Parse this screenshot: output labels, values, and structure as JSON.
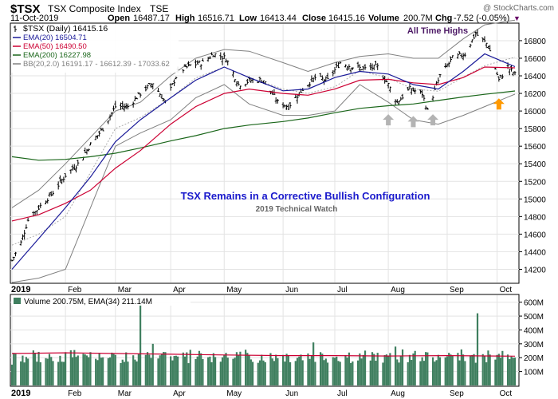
{
  "header": {
    "symbol": "$TSX",
    "name": "TSX Composite Index",
    "exchange": "TSE",
    "date": "11-Oct-2019",
    "open_label": "Open",
    "open": "16487.17",
    "high_label": "High",
    "high": "16516.71",
    "low_label": "Low",
    "low": "16413.44",
    "close_label": "Close",
    "close": "16415.16",
    "volume_label": "Volume",
    "volume": "200.7M",
    "chg_label": "Chg",
    "chg": "-7.52 (-0.05%)",
    "chg_marker": "▼",
    "watermark": "@ StockCharts.com"
  },
  "legend": [
    {
      "text": "$TSX (Daily) 16415.16",
      "color": "#000000",
      "swatch": "bar"
    },
    {
      "text": "EMA(20) 16504.71",
      "color": "#1a1a99",
      "swatch": "line"
    },
    {
      "text": "EMA(50) 16490.50",
      "color": "#cc0033",
      "swatch": "line"
    },
    {
      "text": "EMA(200) 16227.98",
      "color": "#1a661a",
      "swatch": "line"
    },
    {
      "text": "BB(20,2.0) 16191.17 - 16612.39 - 17033.62",
      "color": "#808080",
      "swatch": "line"
    }
  ],
  "annotations": {
    "all_time_highs": "All Time Highs",
    "title": "TSX Remains in a Corrective Bullish Configuration",
    "subtitle": "2019 Technical Watch"
  },
  "volume_legend": "Volume 200.75M, EMA(34) 211.14M",
  "x_labels": [
    "2019",
    "Feb",
    "Mar",
    "Apr",
    "May",
    "Jun",
    "Jul",
    "Aug",
    "Sep",
    "Oct"
  ],
  "colors": {
    "price_bars": "#000000",
    "ema20": "#1a1a99",
    "ema50": "#cc0033",
    "ema200": "#1a661a",
    "bollinger": "#808080",
    "volume_bars": "#3f7f5f",
    "volume_ema": "#cc0033",
    "title": "#1a1acc",
    "all_time_highs": "#4d1a66",
    "grey_arrow": "#b3b3b3",
    "orange_arrow": "#ff9900"
  },
  "chart_data": [
    {
      "type": "line",
      "panel": "price",
      "title": "TSX Remains in a Corrective Bullish Configuration",
      "subtitle": "2019 Technical Watch",
      "x_range": [
        "2019-01-02",
        "2019-10-11"
      ],
      "ylim": [
        14050,
        16990
      ],
      "y_ticks": [
        14200,
        14400,
        14600,
        14800,
        15000,
        15200,
        15400,
        15600,
        15800,
        16000,
        16200,
        16400,
        16600,
        16800
      ],
      "grid": true,
      "legend_placement": "top-left",
      "axis_side": "right",
      "series": [
        {
          "name": "$TSX (Daily)",
          "kind": "ohlc_close",
          "points": [
            [
              "2019-01-02",
              14300
            ],
            [
              "2019-01-07",
              14500
            ],
            [
              "2019-01-11",
              14760
            ],
            [
              "2019-01-17",
              14900
            ],
            [
              "2019-01-24",
              15050
            ],
            [
              "2019-02-01",
              15270
            ],
            [
              "2019-02-08",
              15400
            ],
            [
              "2019-02-15",
              15620
            ],
            [
              "2019-02-22",
              15800
            ],
            [
              "2019-03-01",
              16050
            ],
            [
              "2019-03-08",
              16050
            ],
            [
              "2019-03-15",
              16200
            ],
            [
              "2019-03-22",
              16320
            ],
            [
              "2019-03-29",
              16100
            ],
            [
              "2019-04-05",
              16440
            ],
            [
              "2019-04-12",
              16520
            ],
            [
              "2019-04-19",
              16550
            ],
            [
              "2019-04-25",
              16650
            ],
            [
              "2019-05-02",
              16600
            ],
            [
              "2019-05-09",
              16300
            ],
            [
              "2019-05-16",
              16350
            ],
            [
              "2019-05-23",
              16350
            ],
            [
              "2019-05-31",
              16100
            ],
            [
              "2019-06-06",
              16050
            ],
            [
              "2019-06-14",
              16250
            ],
            [
              "2019-06-21",
              16380
            ],
            [
              "2019-06-28",
              16350
            ],
            [
              "2019-07-05",
              16550
            ],
            [
              "2019-07-12",
              16500
            ],
            [
              "2019-07-19",
              16480
            ],
            [
              "2019-07-26",
              16500
            ],
            [
              "2019-08-01",
              16300
            ],
            [
              "2019-08-06",
              16100
            ],
            [
              "2019-08-13",
              16250
            ],
            [
              "2019-08-20",
              16200
            ],
            [
              "2019-08-23",
              16000
            ],
            [
              "2019-08-30",
              16400
            ],
            [
              "2019-09-06",
              16600
            ],
            [
              "2019-09-13",
              16650
            ],
            [
              "2019-09-19",
              16880
            ],
            [
              "2019-09-26",
              16750
            ],
            [
              "2019-10-02",
              16350
            ],
            [
              "2019-10-07",
              16500
            ],
            [
              "2019-10-11",
              16415.16
            ]
          ]
        },
        {
          "name": "EMA(20)",
          "points": [
            [
              "2019-01-02",
              14200
            ],
            [
              "2019-01-17",
              14550
            ],
            [
              "2019-02-01",
              14900
            ],
            [
              "2019-02-15",
              15250
            ],
            [
              "2019-03-01",
              15650
            ],
            [
              "2019-03-15",
              15900
            ],
            [
              "2019-04-01",
              16150
            ],
            [
              "2019-04-15",
              16350
            ],
            [
              "2019-05-01",
              16500
            ],
            [
              "2019-05-15",
              16380
            ],
            [
              "2019-06-03",
              16230
            ],
            [
              "2019-06-17",
              16250
            ],
            [
              "2019-07-02",
              16380
            ],
            [
              "2019-07-16",
              16450
            ],
            [
              "2019-08-01",
              16420
            ],
            [
              "2019-08-15",
              16300
            ],
            [
              "2019-08-29",
              16250
            ],
            [
              "2019-09-12",
              16450
            ],
            [
              "2019-09-24",
              16650
            ],
            [
              "2019-10-11",
              16504.71
            ]
          ]
        },
        {
          "name": "EMA(50)",
          "points": [
            [
              "2019-01-02",
              14750
            ],
            [
              "2019-01-17",
              14820
            ],
            [
              "2019-02-01",
              14950
            ],
            [
              "2019-02-15",
              15100
            ],
            [
              "2019-03-01",
              15350
            ],
            [
              "2019-03-15",
              15550
            ],
            [
              "2019-04-01",
              15850
            ],
            [
              "2019-04-15",
              16050
            ],
            [
              "2019-05-01",
              16200
            ],
            [
              "2019-05-15",
              16250
            ],
            [
              "2019-06-03",
              16200
            ],
            [
              "2019-06-17",
              16180
            ],
            [
              "2019-07-02",
              16250
            ],
            [
              "2019-07-16",
              16350
            ],
            [
              "2019-08-01",
              16360
            ],
            [
              "2019-08-15",
              16320
            ],
            [
              "2019-08-29",
              16300
            ],
            [
              "2019-09-12",
              16380
            ],
            [
              "2019-09-24",
              16500
            ],
            [
              "2019-10-11",
              16490.5
            ]
          ]
        },
        {
          "name": "EMA(200)",
          "points": [
            [
              "2019-01-02",
              15480
            ],
            [
              "2019-01-17",
              15440
            ],
            [
              "2019-02-01",
              15450
            ],
            [
              "2019-02-15",
              15480
            ],
            [
              "2019-03-01",
              15520
            ],
            [
              "2019-03-15",
              15580
            ],
            [
              "2019-04-01",
              15660
            ],
            [
              "2019-04-15",
              15720
            ],
            [
              "2019-05-01",
              15800
            ],
            [
              "2019-05-15",
              15840
            ],
            [
              "2019-06-03",
              15880
            ],
            [
              "2019-06-17",
              15920
            ],
            [
              "2019-07-02",
              15980
            ],
            [
              "2019-07-16",
              16030
            ],
            [
              "2019-08-01",
              16060
            ],
            [
              "2019-08-15",
              16080
            ],
            [
              "2019-08-29",
              16120
            ],
            [
              "2019-09-12",
              16160
            ],
            [
              "2019-09-24",
              16190
            ],
            [
              "2019-10-11",
              16227.98
            ]
          ]
        },
        {
          "name": "BB(20,2.0)",
          "points": [
            [
              "2019-01-02",
              14050
            ],
            [
              "2019-01-17",
              14100
            ],
            [
              "2019-02-01",
              14200
            ],
            [
              "2019-02-15",
              14900
            ],
            [
              "2019-03-01",
              15600
            ],
            [
              "2019-03-15",
              15750
            ],
            [
              "2019-04-01",
              15900
            ],
            [
              "2019-04-15",
              16150
            ],
            [
              "2019-05-01",
              16300
            ],
            [
              "2019-05-15",
              16080
            ],
            [
              "2019-06-03",
              15950
            ],
            [
              "2019-06-17",
              15950
            ],
            [
              "2019-07-02",
              16000
            ],
            [
              "2019-07-16",
              16300
            ],
            [
              "2019-08-01",
              16100
            ],
            [
              "2019-08-15",
              15900
            ],
            [
              "2019-08-29",
              15850
            ],
            [
              "2019-09-12",
              15950
            ],
            [
              "2019-09-24",
              16050
            ],
            [
              "2019-10-11",
              16191.17
            ]
          ]
        },
        {
          "name": "BB(20,2.0) upper",
          "points": [
            [
              "2019-01-02",
              14900
            ],
            [
              "2019-01-17",
              15100
            ],
            [
              "2019-02-01",
              15400
            ],
            [
              "2019-02-15",
              15700
            ],
            [
              "2019-03-01",
              16000
            ],
            [
              "2019-03-15",
              16100
            ],
            [
              "2019-04-01",
              16400
            ],
            [
              "2019-04-15",
              16600
            ],
            [
              "2019-05-01",
              16700
            ],
            [
              "2019-05-15",
              16680
            ],
            [
              "2019-06-03",
              16550
            ],
            [
              "2019-06-17",
              16450
            ],
            [
              "2019-07-02",
              16550
            ],
            [
              "2019-07-16",
              16620
            ],
            [
              "2019-08-01",
              16650
            ],
            [
              "2019-08-15",
              16600
            ],
            [
              "2019-08-29",
              16600
            ],
            [
              "2019-09-12",
              16820
            ],
            [
              "2019-09-24",
              16980
            ],
            [
              "2019-10-11",
              17033.62
            ]
          ]
        }
      ],
      "annotations": [
        {
          "text": "All Time Highs",
          "x": "2019-09-05",
          "y": 16930
        },
        {
          "kind": "up-arrow",
          "color": "grey",
          "x": "2019-08-01",
          "y": 15900
        },
        {
          "kind": "up-arrow",
          "color": "grey",
          "x": "2019-08-15",
          "y": 15880
        },
        {
          "kind": "up-arrow",
          "color": "grey",
          "x": "2019-08-26",
          "y": 15900
        },
        {
          "kind": "up-arrow",
          "color": "orange",
          "x": "2019-10-02",
          "y": 16080
        }
      ]
    },
    {
      "type": "bar",
      "panel": "volume",
      "ylim": [
        0,
        650
      ],
      "y_unit": "M",
      "y_ticks": [
        100,
        200,
        300,
        400,
        500,
        600
      ],
      "y_tick_labels": [
        "100M",
        "200M",
        "300M",
        "400M",
        "500M",
        "600M"
      ],
      "grid": true,
      "series": [
        {
          "name": "Volume",
          "kind": "bars",
          "points": [
            [
              "2019-01-02",
              150
            ],
            [
              "2019-01-15",
              230
            ],
            [
              "2019-02-01",
              240
            ],
            [
              "2019-02-15",
              240
            ],
            [
              "2019-03-01",
              220
            ],
            [
              "2019-03-15",
              630
            ],
            [
              "2019-03-22",
              300
            ],
            [
              "2019-04-01",
              210
            ],
            [
              "2019-04-15",
              190
            ],
            [
              "2019-05-01",
              220
            ],
            [
              "2019-05-15",
              220
            ],
            [
              "2019-06-03",
              220
            ],
            [
              "2019-06-20",
              310
            ],
            [
              "2019-07-02",
              200
            ],
            [
              "2019-07-15",
              180
            ],
            [
              "2019-08-01",
              210
            ],
            [
              "2019-08-05",
              280
            ],
            [
              "2019-08-15",
              230
            ],
            [
              "2019-09-03",
              210
            ],
            [
              "2019-09-20",
              520
            ],
            [
              "2019-10-01",
              220
            ],
            [
              "2019-10-11",
              200.75
            ]
          ]
        },
        {
          "name": "EMA(34)",
          "points": [
            [
              "2019-01-02",
              230
            ],
            [
              "2019-02-01",
              235
            ],
            [
              "2019-03-01",
              230
            ],
            [
              "2019-04-01",
              225
            ],
            [
              "2019-05-01",
              220
            ],
            [
              "2019-06-03",
              215
            ],
            [
              "2019-07-02",
              215
            ],
            [
              "2019-08-01",
              212
            ],
            [
              "2019-09-03",
              215
            ],
            [
              "2019-10-11",
              211.14
            ]
          ]
        }
      ]
    }
  ]
}
